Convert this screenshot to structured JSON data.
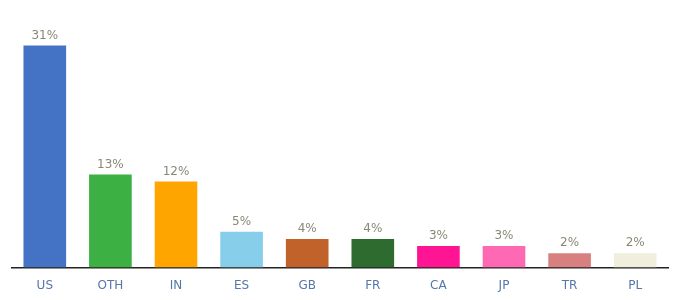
{
  "chart_data": {
    "type": "bar",
    "categories": [
      "US",
      "OTH",
      "IN",
      "ES",
      "GB",
      "FR",
      "CA",
      "JP",
      "TR",
      "PL"
    ],
    "values": [
      31,
      13,
      12,
      5,
      4,
      4,
      3,
      3,
      2,
      2
    ],
    "value_labels": [
      "31%",
      "13%",
      "12%",
      "5%",
      "4%",
      "4%",
      "3%",
      "3%",
      "2%",
      "2%"
    ],
    "data_labels": true,
    "colors": [
      "#4472c4",
      "#3cb043",
      "#ffa500",
      "#87ceeb",
      "#c0622a",
      "#2e6b2e",
      "#ff1493",
      "#ff69b4",
      "#d88080",
      "#f0eedc"
    ],
    "ylim": [
      0,
      34
    ],
    "grid": false,
    "tick_labels": "x"
  }
}
